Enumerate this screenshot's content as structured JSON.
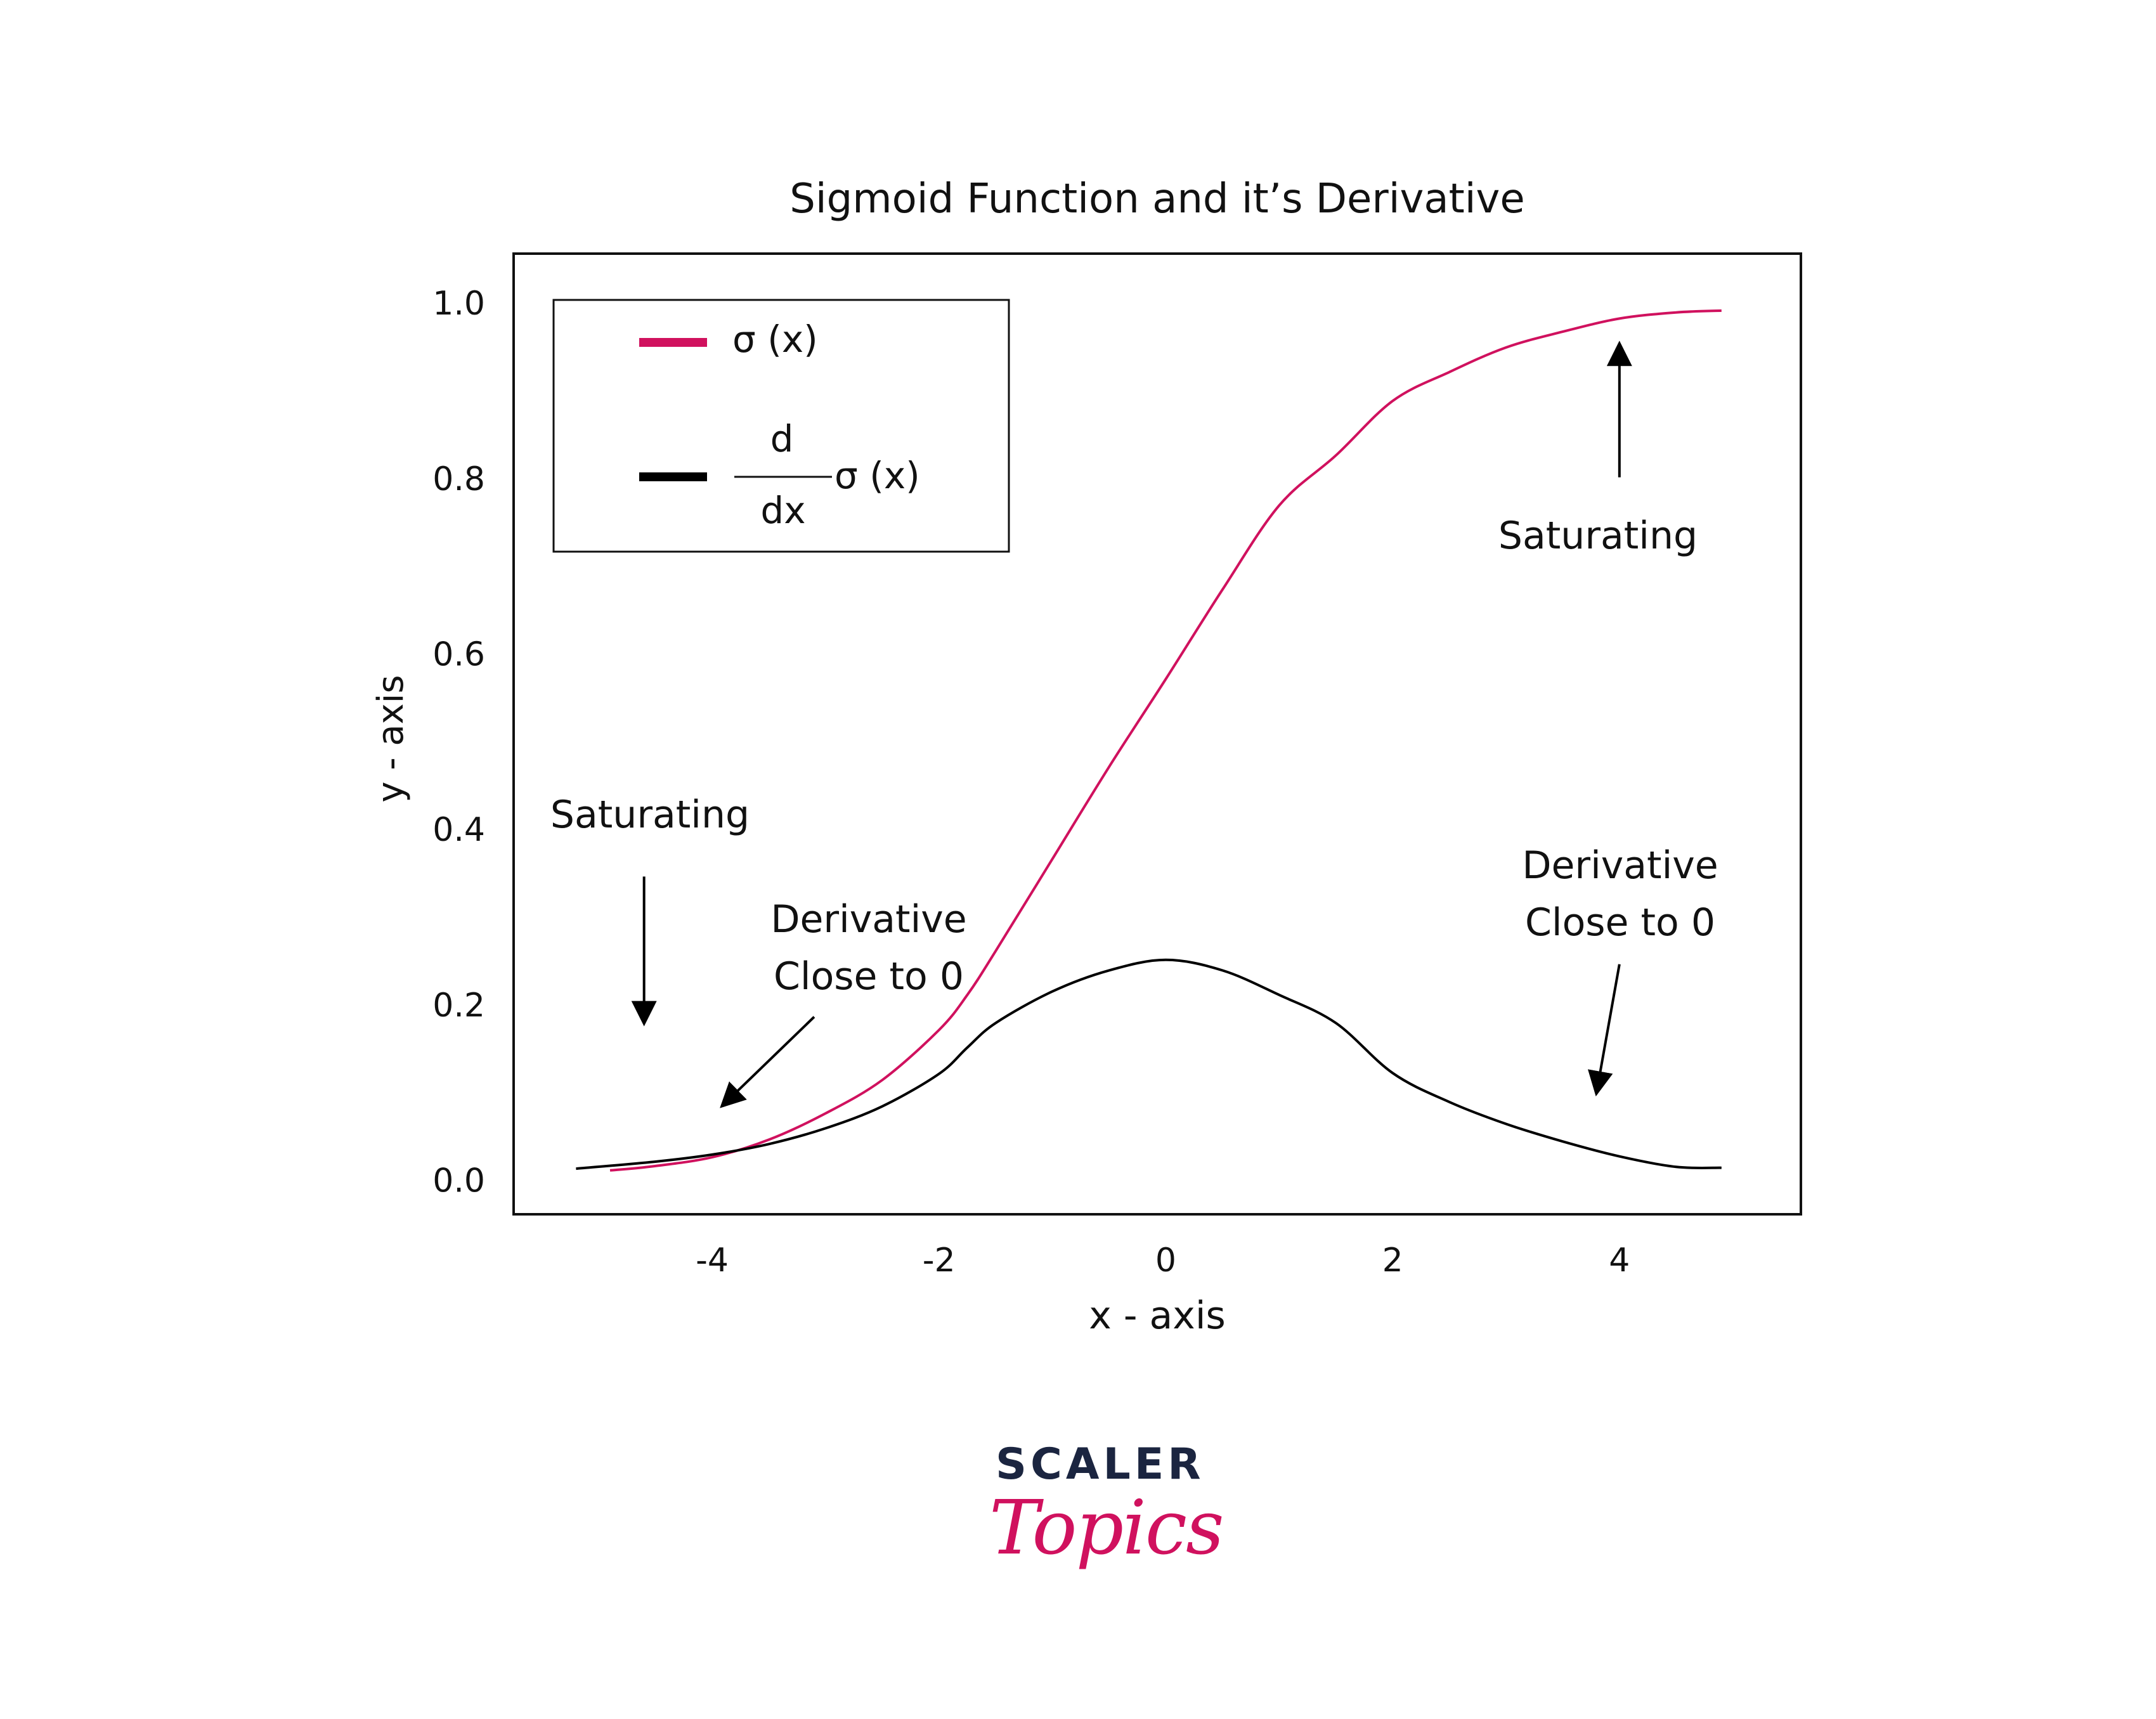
{
  "chart_data": {
    "type": "line",
    "title": "Sigmoid Function and it’s Derivative",
    "xlabel": "x - axis",
    "ylabel": "y - axis",
    "xlim": [
      -5.75,
      5.6
    ],
    "ylim": [
      -0.04,
      1.055
    ],
    "x_ticks": [
      -4,
      -2,
      0,
      2,
      4
    ],
    "x_tick_labels": [
      "-4",
      "-2",
      "0",
      "2",
      "4"
    ],
    "y_ticks": [
      0.0,
      0.2,
      0.4,
      0.6,
      0.8,
      1.0
    ],
    "y_tick_labels": [
      "0.0",
      "0.2",
      "0.4",
      "0.6",
      "0.8",
      "1.0"
    ],
    "grid": false,
    "legend_position": "top-left",
    "series": [
      {
        "name": "σ (x)",
        "color": "#d0115e",
        "x": [
          -4.9,
          -4.5,
          -4.0,
          -3.5,
          -3.0,
          -2.5,
          -2.0,
          -1.75,
          -1.5,
          -1.0,
          -0.5,
          0.0,
          0.5,
          1.0,
          1.5,
          2.0,
          2.5,
          3.0,
          3.5,
          4.0,
          4.5,
          4.9
        ],
        "y": [
          0.01,
          0.015,
          0.025,
          0.045,
          0.075,
          0.113,
          0.17,
          0.21,
          0.26,
          0.365,
          0.47,
          0.57,
          0.672,
          0.768,
          0.825,
          0.887,
          0.92,
          0.948,
          0.966,
          0.981,
          0.988,
          0.99
        ]
      },
      {
        "name": "d σ (x) / dx",
        "legend_numerator": "d",
        "legend_denominator": "dx",
        "legend_suffix": "σ (x)",
        "color": "#000000",
        "x": [
          -5.2,
          -4.5,
          -4.0,
          -3.5,
          -3.0,
          -2.5,
          -2.0,
          -1.75,
          -1.5,
          -1.0,
          -0.5,
          0.0,
          0.5,
          1.0,
          1.5,
          2.0,
          2.5,
          3.0,
          3.5,
          4.0,
          4.5,
          4.9
        ],
        "y": [
          0.012,
          0.02,
          0.028,
          0.04,
          0.058,
          0.083,
          0.12,
          0.15,
          0.178,
          0.214,
          0.238,
          0.25,
          0.238,
          0.21,
          0.178,
          0.121,
          0.088,
          0.063,
          0.043,
          0.026,
          0.014,
          0.013
        ]
      }
    ],
    "annotations": [
      {
        "text": "Saturating",
        "arrow_from": [
          4.0,
          0.8
        ],
        "arrow_to": [
          4.0,
          0.95
        ]
      },
      {
        "text": "Saturating",
        "arrow_from": [
          -4.6,
          0.345
        ],
        "arrow_to": [
          -4.6,
          0.18
        ]
      },
      {
        "text": "Derivative Close to 0",
        "lines": [
          "Derivative",
          "Close to 0"
        ],
        "arrow_from": [
          -3.1,
          0.185
        ],
        "arrow_to": [
          -3.9,
          0.085
        ]
      },
      {
        "text": "Derivative Close to 0",
        "lines": [
          "Derivative",
          "Close to 0"
        ],
        "arrow_from": [
          4.0,
          0.245
        ],
        "arrow_to": [
          3.8,
          0.1
        ]
      }
    ]
  },
  "branding": {
    "line1": "SCALER",
    "line2": "Topics"
  }
}
